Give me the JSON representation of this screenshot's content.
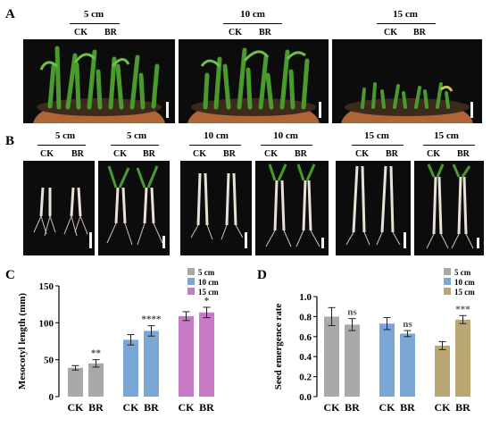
{
  "panels": {
    "a": "A",
    "b": "B",
    "c": "C",
    "d": "D"
  },
  "row_a": {
    "groups": [
      {
        "depth": "5 cm",
        "ck": "CK",
        "br": "BR"
      },
      {
        "depth": "10 cm",
        "ck": "CK",
        "br": "BR"
      },
      {
        "depth": "15 cm",
        "ck": "CK",
        "br": "BR"
      }
    ]
  },
  "row_b": {
    "groups": [
      {
        "depth": "5 cm",
        "ck": "CK",
        "br": "BR"
      },
      {
        "depth": "5 cm",
        "ck": "CK",
        "br": "BR"
      },
      {
        "depth": "10 cm",
        "ck": "CK",
        "br": "BR"
      },
      {
        "depth": "10 cm",
        "ck": "CK",
        "br": "BR"
      },
      {
        "depth": "15 cm",
        "ck": "CK",
        "br": "BR"
      },
      {
        "depth": "15 cm",
        "ck": "CK",
        "br": "BR"
      }
    ]
  },
  "colors": {
    "5cm": "#a9a9ab",
    "10cm": "#7aa7d6",
    "15cm_c": "#c77bc4",
    "15cm_d": "#b9a774"
  },
  "chart_data": [
    {
      "type": "bar",
      "panel": "C",
      "ylabel": "Mesocotyl length (mm)",
      "ylim": [
        0,
        150
      ],
      "yticks": [
        "0",
        "50",
        "100",
        "150"
      ],
      "legend": [
        "5  cm",
        "10 cm",
        "15 cm"
      ],
      "legend_placement": "top-right",
      "groups": [
        {
          "name": "5  cm",
          "color": "#a9a9ab",
          "categories": [
            "CK",
            "BR"
          ],
          "values": [
            39,
            45
          ],
          "errors": [
            3,
            5
          ],
          "sig": "**"
        },
        {
          "name": "10 cm",
          "color": "#7aa7d6",
          "categories": [
            "CK",
            "BR"
          ],
          "values": [
            77,
            89
          ],
          "errors": [
            7,
            7
          ],
          "sig": "****"
        },
        {
          "name": "15 cm",
          "color": "#c77bc4",
          "categories": [
            "CK",
            "BR"
          ],
          "values": [
            109,
            114
          ],
          "errors": [
            6,
            7
          ],
          "sig": "*"
        }
      ]
    },
    {
      "type": "bar",
      "panel": "D",
      "ylabel": "Seed emergence rate",
      "ylim": [
        0,
        1.0
      ],
      "yticks": [
        "0.0",
        "0.2",
        "0.4",
        "0.6",
        "0.8",
        "1.0"
      ],
      "legend": [
        "5  cm",
        "10 cm",
        "15 cm"
      ],
      "legend_placement": "top-right",
      "groups": [
        {
          "name": "5  cm",
          "color": "#a9a9ab",
          "categories": [
            "CK",
            "BR"
          ],
          "values": [
            0.8,
            0.72
          ],
          "errors": [
            0.09,
            0.06
          ],
          "sig": "ns"
        },
        {
          "name": "10 cm",
          "color": "#7aa7d6",
          "categories": [
            "CK",
            "BR"
          ],
          "values": [
            0.73,
            0.63
          ],
          "errors": [
            0.06,
            0.03
          ],
          "sig": "ns"
        },
        {
          "name": "15 cm",
          "color": "#b9a774",
          "categories": [
            "CK",
            "BR"
          ],
          "values": [
            0.51,
            0.77
          ],
          "errors": [
            0.04,
            0.04
          ],
          "sig": "***"
        }
      ]
    }
  ]
}
